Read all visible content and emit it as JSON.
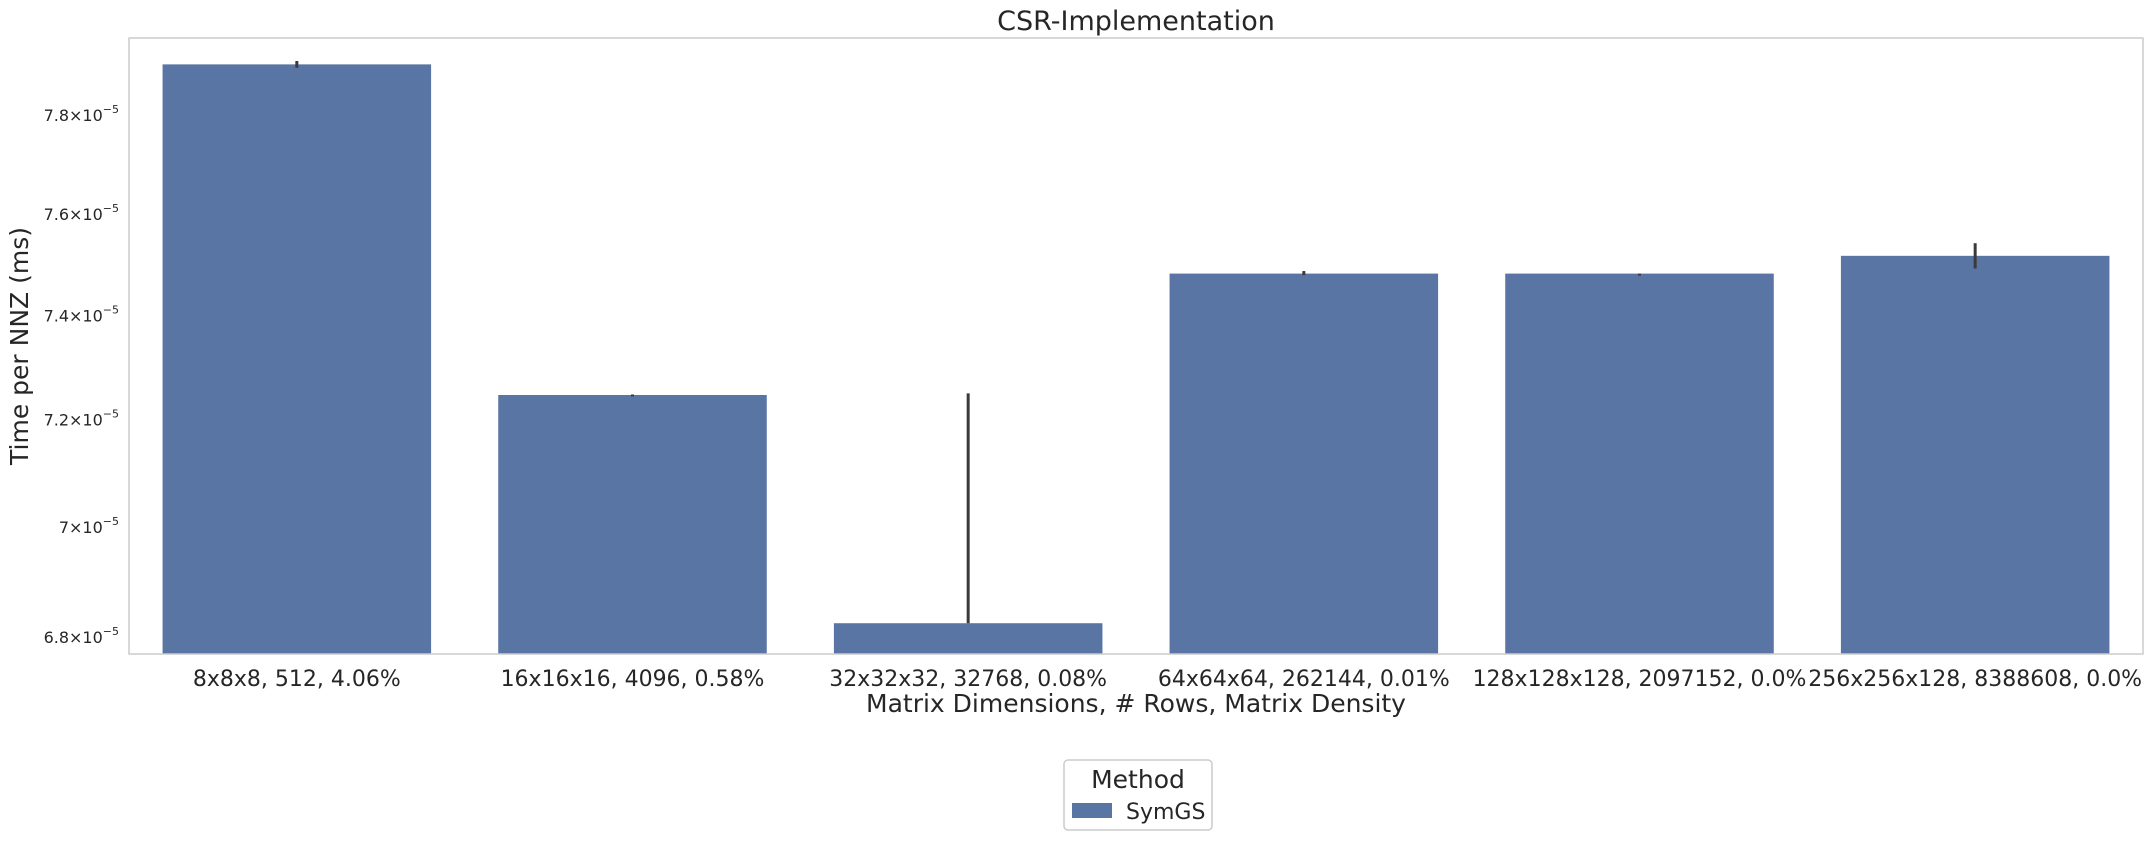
{
  "chart_data": {
    "type": "bar",
    "title": "CSR-Implementation",
    "xlabel": "Matrix Dimensions, # Rows, Matrix Density",
    "ylabel": "Time per NNZ (ms)",
    "yscale": "log",
    "ylim": [
      6.77e-05,
      7.96e-05
    ],
    "yticks": [
      {
        "value": 6.8e-05,
        "mantissa": "6.8",
        "base": "10",
        "exp": "−5"
      },
      {
        "value": 7e-05,
        "mantissa": "7",
        "base": "10",
        "exp": "−5"
      },
      {
        "value": 7.2e-05,
        "mantissa": "7.2",
        "base": "10",
        "exp": "−5"
      },
      {
        "value": 7.4e-05,
        "mantissa": "7.4",
        "base": "10",
        "exp": "−5"
      },
      {
        "value": 7.6e-05,
        "mantissa": "7.6",
        "base": "10",
        "exp": "−5"
      },
      {
        "value": 7.8e-05,
        "mantissa": "7.8",
        "base": "10",
        "exp": "−5"
      }
    ],
    "categories": [
      "8x8x8, 512, 4.06%",
      "16x16x16, 4096, 0.58%",
      "32x32x32, 32768, 0.08%",
      "64x64x64, 262144, 0.01%",
      "128x128x128, 2097152, 0.0%",
      "256x256x128, 8388608, 0.0%"
    ],
    "series": [
      {
        "name": "SymGS",
        "color": "#5975a4",
        "values": [
          7.905e-05,
          7.247e-05,
          6.825e-05,
          7.482e-05,
          7.482e-05,
          7.517e-05
        ],
        "error_low": [
          7.898e-05,
          7.247e-05,
          6.825e-05,
          7.479e-05,
          7.482e-05,
          7.492e-05
        ],
        "error_high": [
          7.912e-05,
          7.248e-05,
          7.25e-05,
          7.487e-05,
          7.482e-05,
          7.542e-05
        ]
      }
    ],
    "grid": false,
    "legend": {
      "title": "Method",
      "placement": "bottom-center, below plot"
    }
  }
}
